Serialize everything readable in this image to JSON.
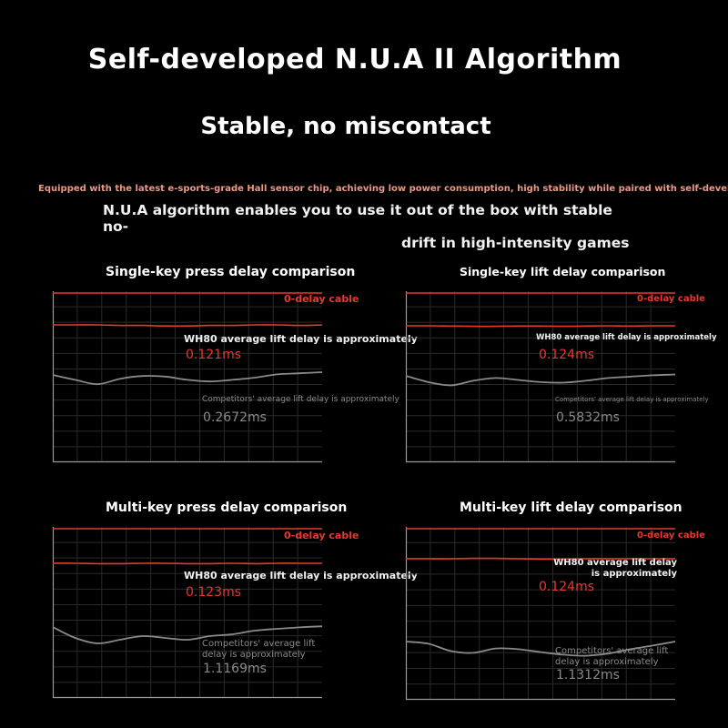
{
  "header": {
    "title": "Self-developed N.U.A II Algorithm",
    "subtitle": "Stable, no miscontact",
    "desc_small": "Equipped with the latest e-sports-grade Hall sensor chip, achieving low power consumption, high stability while paired with self-developed",
    "desc_line1": "N.U.A algorithm enables you to use it out of the box with stable no-",
    "desc_line2": "drift in high-intensity games"
  },
  "colors": {
    "background": "#000000",
    "red": "#e53a2f",
    "grid": "#2a2a2a",
    "competitor": "#8a8a8a"
  },
  "chart_data": [
    {
      "type": "line",
      "title": "Single-key press delay comparison",
      "series": [
        {
          "name": "0-delay cable",
          "values": [
            0,
            0,
            0,
            0,
            0,
            0,
            0,
            0,
            0,
            0,
            0,
            0,
            0
          ]
        },
        {
          "name": "WH80 average lift delay is approximately",
          "value_label": "0.121ms",
          "values": [
            0.121,
            0.121,
            0.121,
            0.12,
            0.12,
            0.119,
            0.119,
            0.12,
            0.12,
            0.121,
            0.121,
            0.12,
            0.121
          ]
        },
        {
          "name": "Competitors' average lift delay is approximately",
          "value_label": "0.2672ms",
          "values": [
            0.267,
            0.258,
            0.25,
            0.26,
            0.265,
            0.264,
            0.258,
            0.255,
            0.258,
            0.262,
            0.268,
            0.27,
            0.272
          ]
        }
      ]
    },
    {
      "type": "line",
      "title": "Single-key lift delay comparison",
      "series": [
        {
          "name": "0-delay cable",
          "values": [
            0,
            0,
            0,
            0,
            0,
            0,
            0,
            0,
            0,
            0,
            0,
            0,
            0
          ]
        },
        {
          "name": "WH80 average lift delay is approximately",
          "value_label": "0.124ms",
          "values": [
            0.124,
            0.124,
            0.123,
            0.122,
            0.122,
            0.123,
            0.123,
            0.122,
            0.123,
            0.124,
            0.123,
            0.124,
            0.124
          ]
        },
        {
          "name": "Competitors' average lift delay is approximately",
          "value_label": "0.5832ms",
          "values": [
            0.583,
            0.56,
            0.548,
            0.565,
            0.575,
            0.568,
            0.56,
            0.558,
            0.565,
            0.575,
            0.58,
            0.585,
            0.588
          ]
        }
      ]
    },
    {
      "type": "line",
      "title": "Multi-key press delay comparison",
      "series": [
        {
          "name": "0-delay cable",
          "values": [
            0,
            0,
            0,
            0,
            0,
            0,
            0,
            0,
            0,
            0,
            0,
            0,
            0
          ]
        },
        {
          "name": "WH80 average lift delay is approximately",
          "value_label": "0.123ms",
          "values": [
            0.123,
            0.123,
            0.122,
            0.122,
            0.123,
            0.123,
            0.122,
            0.122,
            0.123,
            0.122,
            0.123,
            0.123,
            0.123
          ]
        },
        {
          "name": "Competitors' average lift delay is approximately",
          "value_label": "1.1169ms",
          "values": [
            1.115,
            1.085,
            1.07,
            1.08,
            1.09,
            1.085,
            1.08,
            1.09,
            1.095,
            1.105,
            1.11,
            1.114,
            1.117
          ]
        }
      ]
    },
    {
      "type": "line",
      "title": "Multi-key lift delay comparison",
      "series": [
        {
          "name": "0-delay cable",
          "values": [
            0,
            0,
            0,
            0,
            0,
            0,
            0,
            0,
            0,
            0,
            0,
            0,
            0
          ]
        },
        {
          "name": "WH80 average lift delay is approximately",
          "value_label": "0.124ms",
          "values": [
            0.124,
            0.124,
            0.124,
            0.125,
            0.125,
            0.124,
            0.123,
            0.123,
            0.124,
            0.124,
            0.124,
            0.124,
            0.124
          ]
        },
        {
          "name": "Competitors' average lift delay is approximately",
          "value_label": "1.1312ms",
          "values": [
            1.131,
            1.125,
            1.105,
            1.1,
            1.112,
            1.11,
            1.102,
            1.095,
            1.092,
            1.098,
            1.11,
            1.12,
            1.131
          ]
        }
      ]
    }
  ]
}
